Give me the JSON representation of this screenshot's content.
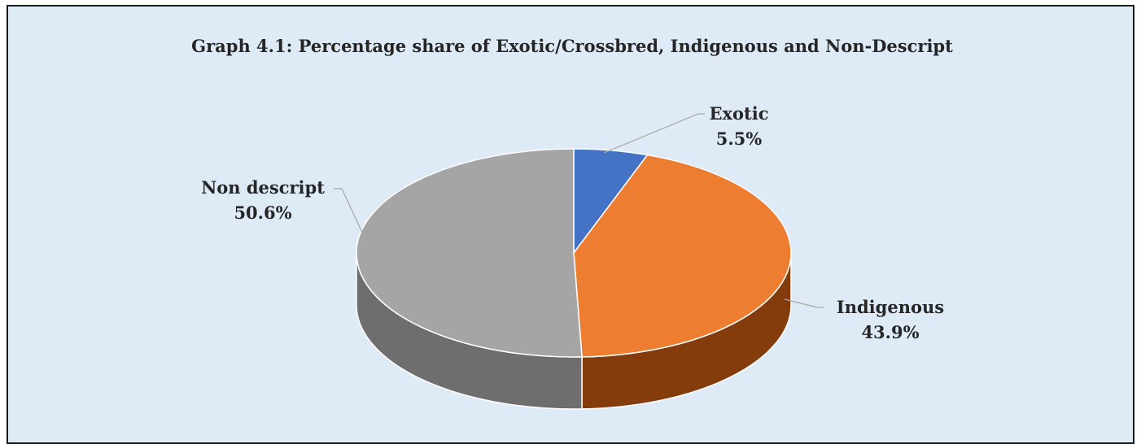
{
  "chart_data": {
    "type": "pie",
    "title": "Graph 4.1: Percentage share of Exotic/Crossbred, Indigenous and Non-Descript",
    "style": "3d",
    "slices": [
      {
        "key": "exotic",
        "label": "Exotic",
        "value": 5.5,
        "value_label": "5.5%",
        "color": "#4472c4",
        "side_color": "#2f5597"
      },
      {
        "key": "indigenous",
        "label": "Indigenous",
        "value": 43.9,
        "value_label": "43.9%",
        "color": "#ed7d31",
        "side_color": "#843c0c"
      },
      {
        "key": "non_descript",
        "label": "Non descript",
        "value": 50.6,
        "value_label": "50.6%",
        "color": "#a5a5a5",
        "side_color": "#6e6e6e"
      }
    ],
    "legend": "none"
  }
}
